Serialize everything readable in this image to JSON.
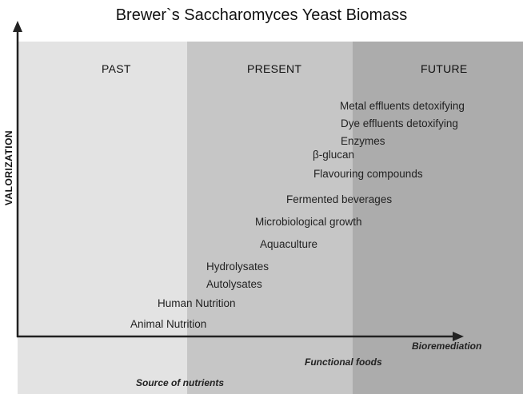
{
  "title": "Brewer`s Saccharomyces Yeast Biomass",
  "y_axis_label": "VALORIZATION",
  "eras": [
    "PAST",
    "PRESENT",
    "FUTURE"
  ],
  "items": [
    "Metal effluents detoxifying",
    "Dye effluents detoxifying",
    "Enzymes",
    "β-glucan",
    "Flavouring compounds",
    "Fermented beverages",
    "Microbiological growth",
    "Aquaculture",
    "Hydrolysates",
    "Autolysates",
    "Human Nutrition",
    "Animal Nutrition"
  ],
  "phases": [
    "Bioremediation",
    "Functional foods",
    "Source of nutrients"
  ]
}
